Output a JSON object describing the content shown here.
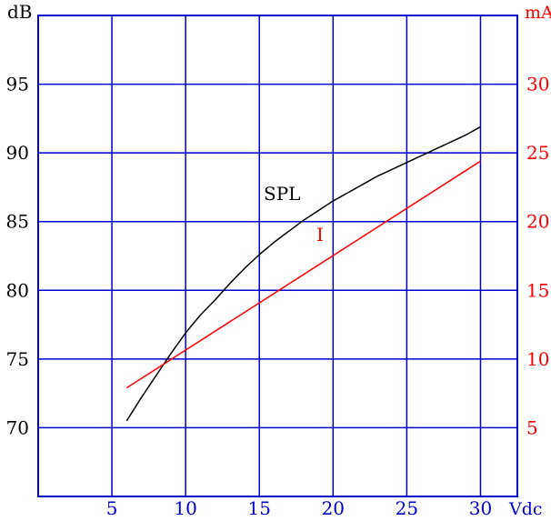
{
  "chart_data": {
    "type": "line",
    "x_unit_label": "Vdc",
    "left_axis_unit": "dB",
    "right_axis_unit": "mA",
    "x_ticks": [
      5,
      10,
      15,
      20,
      25,
      30
    ],
    "left_ticks": [
      70,
      75,
      80,
      85,
      90,
      95
    ],
    "right_ticks": [
      5,
      10,
      15,
      20,
      25,
      30
    ],
    "xlim": [
      0,
      32.5
    ],
    "left_ylim": [
      65,
      100
    ],
    "right_ylim": [
      0,
      35
    ],
    "grid": true,
    "series": [
      {
        "name": "SPL",
        "axis": "left",
        "color": "#000000",
        "x": [
          6,
          7,
          8,
          9,
          10,
          11,
          12,
          13,
          14,
          15,
          16,
          17,
          18,
          19,
          20,
          21,
          22,
          23,
          24,
          25,
          26,
          27,
          28,
          29,
          30
        ],
        "y": [
          70.5,
          72.2,
          73.8,
          75.4,
          76.9,
          78.2,
          79.3,
          80.5,
          81.6,
          82.6,
          83.5,
          84.3,
          85.1,
          85.8,
          86.5,
          87.1,
          87.7,
          88.3,
          88.8,
          89.3,
          89.8,
          90.3,
          90.8,
          91.3,
          91.9
        ]
      },
      {
        "name": "I",
        "axis": "right",
        "color": "#ff0000",
        "x": [
          6,
          30
        ],
        "y": [
          7.9,
          24.4
        ]
      }
    ]
  },
  "colors": {
    "grid": "#0000cc",
    "left_axis_text": "#000000",
    "right_axis_text": "#ff0000",
    "x_axis_text": "#0000cc"
  }
}
